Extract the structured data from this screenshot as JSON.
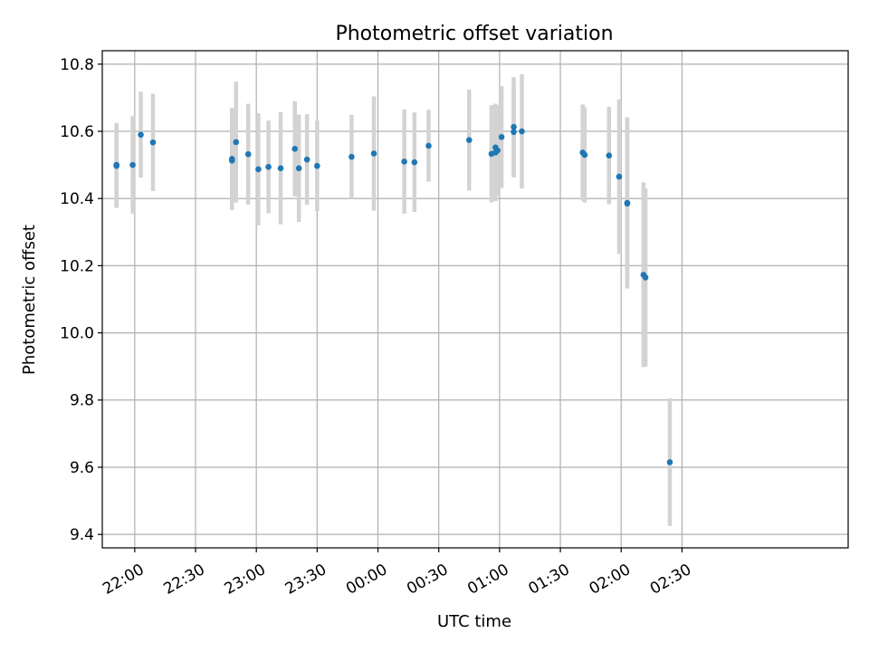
{
  "chart_data": {
    "type": "scatter",
    "title": "Photometric offset variation",
    "xlabel": "UTC time",
    "ylabel": "Photometric offset",
    "grid": true,
    "x_ticks": [
      "22:00",
      "22:30",
      "23:00",
      "23:30",
      "00:00",
      "00:30",
      "01:00",
      "01:30",
      "02:00",
      "02:30"
    ],
    "y_ticks": [
      "9.4",
      "9.6",
      "9.8",
      "10.0",
      "10.2",
      "10.4",
      "10.6",
      "10.8"
    ],
    "ylim": [
      9.36,
      10.84
    ],
    "xlim_minutes_after_2200": [
      -16,
      352
    ],
    "series": [
      {
        "marker_color": "#1f77b4",
        "errorbar_color": "#d3d3d3",
        "points": [
          {
            "t": "21:51",
            "y": 10.5,
            "err": 0.125
          },
          {
            "t": "21:51",
            "y": 10.497,
            "err": 0.125
          },
          {
            "t": "21:59",
            "y": 10.5,
            "err": 0.145
          },
          {
            "t": "22:03",
            "y": 10.59,
            "err": 0.128
          },
          {
            "t": "22:09",
            "y": 10.567,
            "err": 0.145
          },
          {
            "t": "22:48",
            "y": 10.518,
            "err": 0.152
          },
          {
            "t": "22:48",
            "y": 10.513,
            "err": 0.123
          },
          {
            "t": "22:50",
            "y": 10.568,
            "err": 0.18
          },
          {
            "t": "22:56",
            "y": 10.532,
            "err": 0.15
          },
          {
            "t": "23:01",
            "y": 10.487,
            "err": 0.167
          },
          {
            "t": "23:06",
            "y": 10.494,
            "err": 0.138
          },
          {
            "t": "23:12",
            "y": 10.49,
            "err": 0.167
          },
          {
            "t": "23:19",
            "y": 10.548,
            "err": 0.142
          },
          {
            "t": "23:21",
            "y": 10.49,
            "err": 0.16
          },
          {
            "t": "23:25",
            "y": 10.516,
            "err": 0.135
          },
          {
            "t": "23:30",
            "y": 10.497,
            "err": 0.135
          },
          {
            "t": "23:47",
            "y": 10.524,
            "err": 0.125
          },
          {
            "t": "23:58",
            "y": 10.534,
            "err": 0.17
          },
          {
            "t": "00:13",
            "y": 10.51,
            "err": 0.155
          },
          {
            "t": "00:18",
            "y": 10.508,
            "err": 0.148
          },
          {
            "t": "00:25",
            "y": 10.557,
            "err": 0.107
          },
          {
            "t": "00:45",
            "y": 10.574,
            "err": 0.15
          },
          {
            "t": "00:56",
            "y": 10.533,
            "err": 0.145
          },
          {
            "t": "00:58",
            "y": 10.552,
            "err": 0.13
          },
          {
            "t": "00:58",
            "y": 10.537,
            "err": 0.145
          },
          {
            "t": "00:59",
            "y": 10.543,
            "err": 0.135
          },
          {
            "t": "01:01",
            "y": 10.583,
            "err": 0.152
          },
          {
            "t": "01:07",
            "y": 10.613,
            "err": 0.148
          },
          {
            "t": "01:07",
            "y": 10.598,
            "err": 0.135
          },
          {
            "t": "01:11",
            "y": 10.6,
            "err": 0.17
          },
          {
            "t": "01:41",
            "y": 10.537,
            "err": 0.143
          },
          {
            "t": "01:42",
            "y": 10.53,
            "err": 0.142
          },
          {
            "t": "01:54",
            "y": 10.528,
            "err": 0.145
          },
          {
            "t": "01:59",
            "y": 10.465,
            "err": 0.23
          },
          {
            "t": "02:03",
            "y": 10.387,
            "err": 0.255
          },
          {
            "t": "02:03",
            "y": 10.385,
            "err": 0.24
          },
          {
            "t": "02:11",
            "y": 10.173,
            "err": 0.275
          },
          {
            "t": "02:12",
            "y": 10.165,
            "err": 0.265
          },
          {
            "t": "02:24",
            "y": 9.615,
            "err": 0.19
          }
        ]
      }
    ]
  }
}
